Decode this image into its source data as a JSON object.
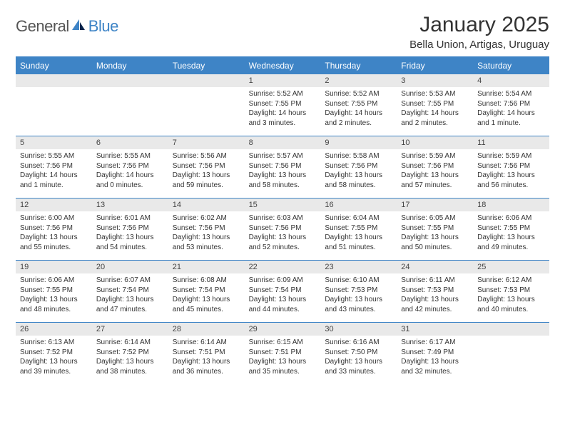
{
  "logo": {
    "word1": "General",
    "word2": "Blue"
  },
  "title": "January 2025",
  "location": "Bella Union, Artigas, Uruguay",
  "colors": {
    "accent": "#3e84c6",
    "band": "#e9e9e9",
    "text": "#333333"
  },
  "dow": [
    "Sunday",
    "Monday",
    "Tuesday",
    "Wednesday",
    "Thursday",
    "Friday",
    "Saturday"
  ],
  "weeks": [
    [
      {
        "n": "",
        "sr": "",
        "ss": "",
        "dl": ""
      },
      {
        "n": "",
        "sr": "",
        "ss": "",
        "dl": ""
      },
      {
        "n": "",
        "sr": "",
        "ss": "",
        "dl": ""
      },
      {
        "n": "1",
        "sr": "Sunrise: 5:52 AM",
        "ss": "Sunset: 7:55 PM",
        "dl": "Daylight: 14 hours and 3 minutes."
      },
      {
        "n": "2",
        "sr": "Sunrise: 5:52 AM",
        "ss": "Sunset: 7:55 PM",
        "dl": "Daylight: 14 hours and 2 minutes."
      },
      {
        "n": "3",
        "sr": "Sunrise: 5:53 AM",
        "ss": "Sunset: 7:55 PM",
        "dl": "Daylight: 14 hours and 2 minutes."
      },
      {
        "n": "4",
        "sr": "Sunrise: 5:54 AM",
        "ss": "Sunset: 7:56 PM",
        "dl": "Daylight: 14 hours and 1 minute."
      }
    ],
    [
      {
        "n": "5",
        "sr": "Sunrise: 5:55 AM",
        "ss": "Sunset: 7:56 PM",
        "dl": "Daylight: 14 hours and 1 minute."
      },
      {
        "n": "6",
        "sr": "Sunrise: 5:55 AM",
        "ss": "Sunset: 7:56 PM",
        "dl": "Daylight: 14 hours and 0 minutes."
      },
      {
        "n": "7",
        "sr": "Sunrise: 5:56 AM",
        "ss": "Sunset: 7:56 PM",
        "dl": "Daylight: 13 hours and 59 minutes."
      },
      {
        "n": "8",
        "sr": "Sunrise: 5:57 AM",
        "ss": "Sunset: 7:56 PM",
        "dl": "Daylight: 13 hours and 58 minutes."
      },
      {
        "n": "9",
        "sr": "Sunrise: 5:58 AM",
        "ss": "Sunset: 7:56 PM",
        "dl": "Daylight: 13 hours and 58 minutes."
      },
      {
        "n": "10",
        "sr": "Sunrise: 5:59 AM",
        "ss": "Sunset: 7:56 PM",
        "dl": "Daylight: 13 hours and 57 minutes."
      },
      {
        "n": "11",
        "sr": "Sunrise: 5:59 AM",
        "ss": "Sunset: 7:56 PM",
        "dl": "Daylight: 13 hours and 56 minutes."
      }
    ],
    [
      {
        "n": "12",
        "sr": "Sunrise: 6:00 AM",
        "ss": "Sunset: 7:56 PM",
        "dl": "Daylight: 13 hours and 55 minutes."
      },
      {
        "n": "13",
        "sr": "Sunrise: 6:01 AM",
        "ss": "Sunset: 7:56 PM",
        "dl": "Daylight: 13 hours and 54 minutes."
      },
      {
        "n": "14",
        "sr": "Sunrise: 6:02 AM",
        "ss": "Sunset: 7:56 PM",
        "dl": "Daylight: 13 hours and 53 minutes."
      },
      {
        "n": "15",
        "sr": "Sunrise: 6:03 AM",
        "ss": "Sunset: 7:56 PM",
        "dl": "Daylight: 13 hours and 52 minutes."
      },
      {
        "n": "16",
        "sr": "Sunrise: 6:04 AM",
        "ss": "Sunset: 7:55 PM",
        "dl": "Daylight: 13 hours and 51 minutes."
      },
      {
        "n": "17",
        "sr": "Sunrise: 6:05 AM",
        "ss": "Sunset: 7:55 PM",
        "dl": "Daylight: 13 hours and 50 minutes."
      },
      {
        "n": "18",
        "sr": "Sunrise: 6:06 AM",
        "ss": "Sunset: 7:55 PM",
        "dl": "Daylight: 13 hours and 49 minutes."
      }
    ],
    [
      {
        "n": "19",
        "sr": "Sunrise: 6:06 AM",
        "ss": "Sunset: 7:55 PM",
        "dl": "Daylight: 13 hours and 48 minutes."
      },
      {
        "n": "20",
        "sr": "Sunrise: 6:07 AM",
        "ss": "Sunset: 7:54 PM",
        "dl": "Daylight: 13 hours and 47 minutes."
      },
      {
        "n": "21",
        "sr": "Sunrise: 6:08 AM",
        "ss": "Sunset: 7:54 PM",
        "dl": "Daylight: 13 hours and 45 minutes."
      },
      {
        "n": "22",
        "sr": "Sunrise: 6:09 AM",
        "ss": "Sunset: 7:54 PM",
        "dl": "Daylight: 13 hours and 44 minutes."
      },
      {
        "n": "23",
        "sr": "Sunrise: 6:10 AM",
        "ss": "Sunset: 7:53 PM",
        "dl": "Daylight: 13 hours and 43 minutes."
      },
      {
        "n": "24",
        "sr": "Sunrise: 6:11 AM",
        "ss": "Sunset: 7:53 PM",
        "dl": "Daylight: 13 hours and 42 minutes."
      },
      {
        "n": "25",
        "sr": "Sunrise: 6:12 AM",
        "ss": "Sunset: 7:53 PM",
        "dl": "Daylight: 13 hours and 40 minutes."
      }
    ],
    [
      {
        "n": "26",
        "sr": "Sunrise: 6:13 AM",
        "ss": "Sunset: 7:52 PM",
        "dl": "Daylight: 13 hours and 39 minutes."
      },
      {
        "n": "27",
        "sr": "Sunrise: 6:14 AM",
        "ss": "Sunset: 7:52 PM",
        "dl": "Daylight: 13 hours and 38 minutes."
      },
      {
        "n": "28",
        "sr": "Sunrise: 6:14 AM",
        "ss": "Sunset: 7:51 PM",
        "dl": "Daylight: 13 hours and 36 minutes."
      },
      {
        "n": "29",
        "sr": "Sunrise: 6:15 AM",
        "ss": "Sunset: 7:51 PM",
        "dl": "Daylight: 13 hours and 35 minutes."
      },
      {
        "n": "30",
        "sr": "Sunrise: 6:16 AM",
        "ss": "Sunset: 7:50 PM",
        "dl": "Daylight: 13 hours and 33 minutes."
      },
      {
        "n": "31",
        "sr": "Sunrise: 6:17 AM",
        "ss": "Sunset: 7:49 PM",
        "dl": "Daylight: 13 hours and 32 minutes."
      },
      {
        "n": "",
        "sr": "",
        "ss": "",
        "dl": ""
      }
    ]
  ]
}
